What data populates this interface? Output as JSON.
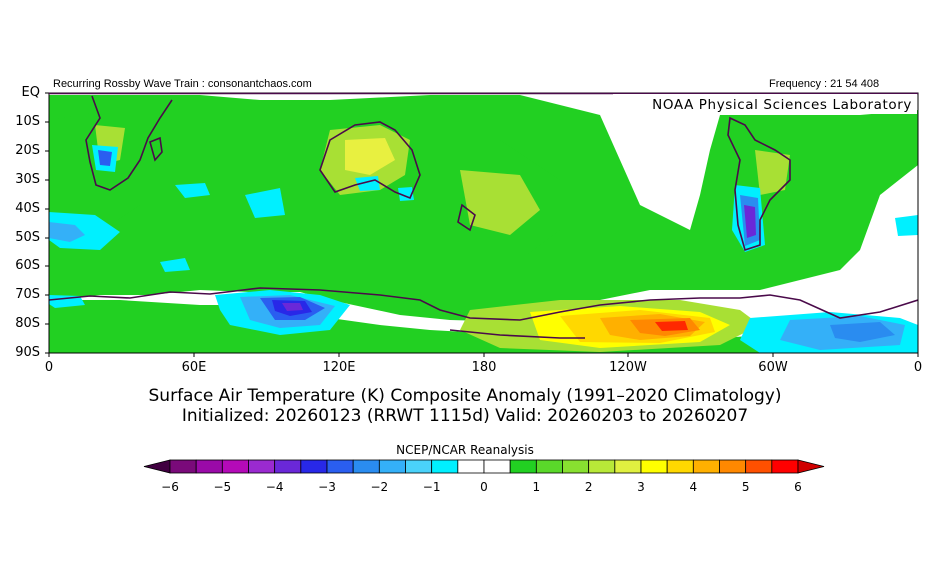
{
  "header": {
    "left_text": "Recurring Rossby Wave Train : consonantchaos.com",
    "right_text": "Frequency : 21 54 408",
    "lab_text": "NOAA Physical Sciences Laboratory"
  },
  "map": {
    "region": "Southern Hemisphere",
    "lat_labels": [
      "EQ",
      "10S",
      "20S",
      "30S",
      "40S",
      "50S",
      "60S",
      "70S",
      "80S",
      "90S"
    ],
    "lon_labels": [
      "0",
      "60E",
      "120E",
      "180",
      "120W",
      "60W",
      "0"
    ],
    "coastline_color": "#4a0a4a"
  },
  "titles": {
    "line1": "Surface Air Temperature (K) Composite Anomaly (1991–2020 Climatology)",
    "line2": "Initialized: 20260123 (RRWT 1115d) Valid: 20260203 to 20260207"
  },
  "colorbar": {
    "title": "NCEP/NCAR Reanalysis",
    "tick_labels": [
      "−6",
      "−5",
      "−4",
      "−3",
      "−2",
      "−1",
      "0",
      "1",
      "2",
      "3",
      "4",
      "5",
      "6"
    ],
    "colors": [
      "#400040",
      "#7a0a7a",
      "#9a0aa8",
      "#b40ab8",
      "#9a2ad0",
      "#6a28d8",
      "#2828e8",
      "#2a5ef0",
      "#2a8cf0",
      "#34b0f8",
      "#4ad2fa",
      "#00f0ff",
      "#ffffff",
      "#ffffff",
      "#22d022",
      "#5ad82a",
      "#88e030",
      "#b8e838",
      "#e0f040",
      "#ffff00",
      "#ffd800",
      "#ffb000",
      "#ff8800",
      "#ff5000",
      "#ff0000",
      "#d00000"
    ]
  },
  "chart_data": {
    "type": "heatmap",
    "title": "Surface Air Temperature (K) Composite Anomaly (1991–2020 Climatology)",
    "subtitle": "Initialized: 20260123 (RRWT 1115d) Valid: 20260203 to 20260207",
    "x_tick_labels": [
      "0",
      "60E",
      "120E",
      "180",
      "120W",
      "60W",
      "0"
    ],
    "y_tick_labels": [
      "EQ",
      "10S",
      "20S",
      "30S",
      "40S",
      "50S",
      "60S",
      "70S",
      "80S",
      "90S"
    ],
    "colorbar_range": [
      -6,
      6
    ],
    "colorbar_ticks": [
      -6,
      -5,
      -4,
      -3,
      -2,
      -1,
      0,
      1,
      2,
      3,
      4,
      5,
      6
    ],
    "anomaly_regions": [
      {
        "lon": 20,
        "lat": -22,
        "value": -2
      },
      {
        "lon": 105,
        "lat": -80,
        "value": -3
      },
      {
        "lon": 290,
        "lat": -42,
        "value": -3
      },
      {
        "lon": 320,
        "lat": -82,
        "value": -2
      },
      {
        "lon": 218,
        "lat": -80,
        "value": 5
      },
      {
        "lon": 170,
        "lat": -35,
        "value": 2
      },
      {
        "lon": 130,
        "lat": -22,
        "value": 2
      },
      {
        "lon": 10,
        "lat": -48,
        "value": -1
      },
      {
        "lon": 60,
        "lat": -35,
        "value": -1
      }
    ]
  }
}
